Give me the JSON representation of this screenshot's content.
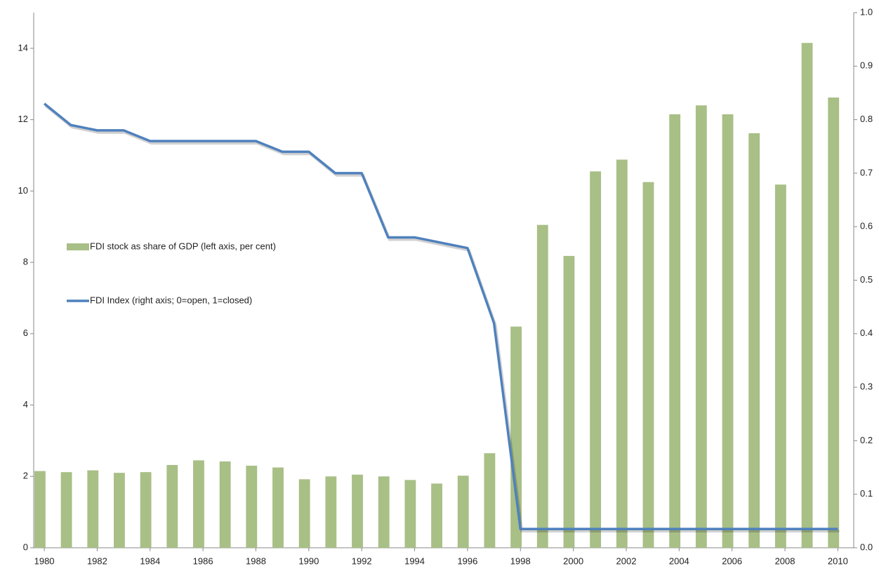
{
  "chart_data": {
    "type": "bar_line",
    "x": [
      1980,
      1981,
      1982,
      1983,
      1984,
      1985,
      1986,
      1987,
      1988,
      1989,
      1990,
      1991,
      1992,
      1993,
      1994,
      1995,
      1996,
      1997,
      1998,
      1999,
      2000,
      2001,
      2002,
      2003,
      2004,
      2005,
      2006,
      2007,
      2008,
      2009,
      2010
    ],
    "xlim": [
      1979.6,
      2010.6
    ],
    "xticks": [
      1980,
      1982,
      1984,
      1986,
      1988,
      1990,
      1992,
      1994,
      1996,
      1998,
      2000,
      2002,
      2004,
      2006,
      2008,
      2010
    ],
    "ylim": [
      0,
      15
    ],
    "yticks": [
      0,
      2,
      4,
      6,
      8,
      10,
      12,
      14
    ],
    "y2lim": [
      0,
      1
    ],
    "y2ticks": [
      {
        "value": 0,
        "label": "0.0"
      },
      0.1,
      0.2,
      0.3,
      0.4,
      0.5,
      0.6,
      0.7,
      0.8,
      0.9,
      {
        "value": 1,
        "label": "1.0"
      }
    ],
    "series": [
      {
        "name": "FDI stock as share of GDP (left axis, per cent)",
        "type": "bar",
        "color": "#a8bf86",
        "values": [
          2.15,
          2.12,
          2.17,
          2.1,
          2.12,
          2.32,
          2.45,
          2.42,
          2.3,
          2.25,
          1.92,
          2.0,
          2.05,
          2.0,
          1.9,
          1.8,
          2.02,
          2.65,
          6.2,
          9.05,
          8.18,
          10.55,
          10.88,
          10.25,
          12.15,
          12.4,
          12.15,
          11.62,
          10.18,
          14.15,
          12.62
        ]
      },
      {
        "name": "FDI Index (right axis; 0=open, 1=closed)",
        "type": "line",
        "axis": "y2",
        "color": "#4f81bd",
        "values": [
          0.83,
          0.79,
          0.78,
          0.78,
          0.76,
          0.76,
          0.76,
          0.76,
          0.76,
          0.74,
          0.74,
          0.7,
          0.7,
          0.58,
          0.58,
          0.57,
          0.56,
          0.42,
          0.035,
          0.035,
          0.035,
          0.035,
          0.035,
          0.035,
          0.035,
          0.035,
          0.035,
          0.035,
          0.035,
          0.035,
          0.035
        ]
      }
    ]
  }
}
